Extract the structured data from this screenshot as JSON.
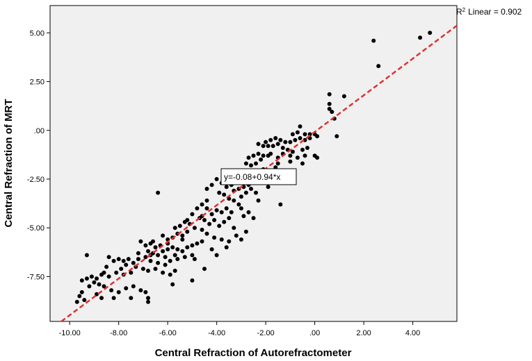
{
  "chart_data": {
    "type": "scatter",
    "xlabel": "Central Refraction of Autorefractometer",
    "ylabel": "Central Refraction of MRT",
    "xlim": [
      -10.8,
      5.8
    ],
    "ylim": [
      -9.8,
      6.4
    ],
    "x_ticks": [
      -10,
      -8,
      -6,
      -4,
      -2,
      0,
      2,
      4
    ],
    "x_tick_labels": [
      "-10.00",
      "-8.00",
      "-6.00",
      "-4.00",
      "-2.00",
      ".00",
      "2.00",
      "4.00"
    ],
    "y_ticks": [
      5,
      2.5,
      0,
      -2.5,
      -5,
      -7.5
    ],
    "y_tick_labels": [
      "5.00",
      "2.50",
      ".00",
      "-2.50",
      "-5.00",
      "-7.50"
    ],
    "r2_label": "Linear = 0.902",
    "r2_prefix": "R",
    "r2_sup": "2",
    "equation": "y=-0.08+0.94*x",
    "fit": {
      "intercept": -0.08,
      "slope": 0.94,
      "color": "#e03030"
    },
    "point_color": "#000000",
    "plot_background": "#f0f0f0",
    "points": [
      [
        4.7,
        5.0
      ],
      [
        4.3,
        4.75
      ],
      [
        2.4,
        4.6
      ],
      [
        2.6,
        3.3
      ],
      [
        0.6,
        1.85
      ],
      [
        1.2,
        1.75
      ],
      [
        0.6,
        1.35
      ],
      [
        0.6,
        1.1
      ],
      [
        0.7,
        0.95
      ],
      [
        0.9,
        -0.3
      ],
      [
        0.8,
        0.6
      ],
      [
        -0.6,
        0.2
      ],
      [
        -0.2,
        -0.2
      ],
      [
        -0.4,
        -0.2
      ],
      [
        -0.7,
        -0.1
      ],
      [
        -0.9,
        -0.2
      ],
      [
        0.0,
        -0.2
      ],
      [
        0.1,
        -0.3
      ],
      [
        -0.2,
        -0.4
      ],
      [
        -0.4,
        -0.5
      ],
      [
        -0.6,
        -0.4
      ],
      [
        -0.8,
        -0.5
      ],
      [
        -1.0,
        -0.6
      ],
      [
        -1.2,
        -0.6
      ],
      [
        -1.4,
        -0.5
      ],
      [
        -1.6,
        -0.4
      ],
      [
        -1.8,
        -0.5
      ],
      [
        -2.0,
        -0.6
      ],
      [
        -1.5,
        -0.7
      ],
      [
        -1.7,
        -0.8
      ],
      [
        -1.9,
        -0.8
      ],
      [
        -2.1,
        -0.8
      ],
      [
        -2.3,
        -0.7
      ],
      [
        -1.3,
        -0.9
      ],
      [
        -1.1,
        -1.0
      ],
      [
        -0.9,
        -1.1
      ],
      [
        -0.5,
        -1.0
      ],
      [
        -0.3,
        -0.9
      ],
      [
        0.0,
        -1.3
      ],
      [
        0.1,
        -1.4
      ],
      [
        -0.4,
        -1.3
      ],
      [
        -0.7,
        -1.4
      ],
      [
        -1.0,
        -1.3
      ],
      [
        -1.3,
        -1.2
      ],
      [
        -1.5,
        -1.4
      ],
      [
        -1.8,
        -1.2
      ],
      [
        -1.9,
        -1.3
      ],
      [
        -2.1,
        -1.3
      ],
      [
        -2.3,
        -1.2
      ],
      [
        -2.5,
        -1.3
      ],
      [
        -2.7,
        -1.4
      ],
      [
        -2.2,
        -1.5
      ],
      [
        -2.4,
        -1.7
      ],
      [
        -2.6,
        -1.8
      ],
      [
        -2.8,
        -1.7
      ],
      [
        -1.6,
        -1.9
      ],
      [
        -1.8,
        -2.1
      ],
      [
        -2.0,
        -2.3
      ],
      [
        -2.2,
        -2.4
      ],
      [
        -2.5,
        -2.6
      ],
      [
        -2.7,
        -2.8
      ],
      [
        -2.9,
        -2.9
      ],
      [
        -3.1,
        -3.0
      ],
      [
        -3.2,
        -2.7
      ],
      [
        -3.4,
        -2.8
      ],
      [
        -3.6,
        -2.9
      ],
      [
        -3.8,
        -2.7
      ],
      [
        -4.0,
        -2.5
      ],
      [
        -4.2,
        -2.8
      ],
      [
        -4.4,
        -3.0
      ],
      [
        -3.9,
        -3.2
      ],
      [
        -3.7,
        -3.3
      ],
      [
        -3.5,
        -3.5
      ],
      [
        -3.3,
        -3.6
      ],
      [
        -3.1,
        -3.8
      ],
      [
        -3.0,
        -3.4
      ],
      [
        -2.8,
        -3.2
      ],
      [
        -2.6,
        -3.0
      ],
      [
        -2.3,
        -3.6
      ],
      [
        -1.4,
        -3.8
      ],
      [
        -3.6,
        -4.0
      ],
      [
        -3.8,
        -4.2
      ],
      [
        -4.0,
        -4.1
      ],
      [
        -4.2,
        -4.3
      ],
      [
        -4.4,
        -4.0
      ],
      [
        -4.6,
        -3.8
      ],
      [
        -4.8,
        -4.0
      ],
      [
        -5.0,
        -4.3
      ],
      [
        -4.7,
        -4.5
      ],
      [
        -4.5,
        -4.6
      ],
      [
        -4.3,
        -4.8
      ],
      [
        -4.1,
        -4.6
      ],
      [
        -3.9,
        -4.9
      ],
      [
        -3.7,
        -4.7
      ],
      [
        -3.5,
        -4.5
      ],
      [
        -3.3,
        -5.0
      ],
      [
        -3.2,
        -5.4
      ],
      [
        -3.5,
        -5.7
      ],
      [
        -3.8,
        -5.6
      ],
      [
        -4.1,
        -5.5
      ],
      [
        -4.4,
        -5.3
      ],
      [
        -4.6,
        -5.1
      ],
      [
        -4.9,
        -5.0
      ],
      [
        -5.1,
        -4.8
      ],
      [
        -5.3,
        -4.7
      ],
      [
        -5.5,
        -4.9
      ],
      [
        -5.7,
        -5.0
      ],
      [
        -5.2,
        -5.2
      ],
      [
        -5.4,
        -5.4
      ],
      [
        -5.6,
        -5.3
      ],
      [
        -5.8,
        -5.5
      ],
      [
        -6.0,
        -5.6
      ],
      [
        -6.2,
        -5.4
      ],
      [
        -6.0,
        -5.8
      ],
      [
        -6.3,
        -5.9
      ],
      [
        -6.5,
        -6.0
      ],
      [
        -6.7,
        -5.8
      ],
      [
        -6.9,
        -5.9
      ],
      [
        -7.1,
        -5.7
      ],
      [
        -6.8,
        -6.2
      ],
      [
        -6.6,
        -6.3
      ],
      [
        -6.4,
        -6.4
      ],
      [
        -6.2,
        -6.2
      ],
      [
        -6.0,
        -6.1
      ],
      [
        -5.8,
        -6.0
      ],
      [
        -5.6,
        -6.1
      ],
      [
        -5.4,
        -6.2
      ],
      [
        -5.2,
        -6.0
      ],
      [
        -5.0,
        -5.9
      ],
      [
        -4.8,
        -5.8
      ],
      [
        -4.6,
        -5.7
      ],
      [
        -5.0,
        -6.4
      ],
      [
        -5.3,
        -6.5
      ],
      [
        -5.6,
        -6.6
      ],
      [
        -5.9,
        -6.7
      ],
      [
        -6.1,
        -6.9
      ],
      [
        -6.4,
        -6.8
      ],
      [
        -6.7,
        -6.7
      ],
      [
        -6.9,
        -6.5
      ],
      [
        -7.2,
        -6.6
      ],
      [
        -7.4,
        -6.8
      ],
      [
        -7.6,
        -6.6
      ],
      [
        -7.8,
        -6.7
      ],
      [
        -8.0,
        -6.6
      ],
      [
        -8.2,
        -6.7
      ],
      [
        -7.3,
        -7.0
      ],
      [
        -7.0,
        -7.1
      ],
      [
        -6.8,
        -7.2
      ],
      [
        -6.5,
        -7.1
      ],
      [
        -6.2,
        -7.3
      ],
      [
        -5.9,
        -7.4
      ],
      [
        -5.7,
        -7.2
      ],
      [
        -7.5,
        -7.3
      ],
      [
        -7.8,
        -7.4
      ],
      [
        -8.1,
        -7.3
      ],
      [
        -8.4,
        -7.5
      ],
      [
        -8.7,
        -7.4
      ],
      [
        -8.9,
        -7.6
      ],
      [
        -9.1,
        -7.5
      ],
      [
        -9.3,
        -7.6
      ],
      [
        -9.5,
        -7.7
      ],
      [
        -9.0,
        -7.8
      ],
      [
        -8.8,
        -7.9
      ],
      [
        -8.6,
        -8.0
      ],
      [
        -8.3,
        -8.2
      ],
      [
        -8.0,
        -8.3
      ],
      [
        -7.7,
        -8.1
      ],
      [
        -7.4,
        -8.0
      ],
      [
        -7.1,
        -8.2
      ],
      [
        -6.9,
        -8.3
      ],
      [
        -6.8,
        -8.6
      ],
      [
        -6.8,
        -8.8
      ],
      [
        -5.8,
        -7.9
      ],
      [
        -5.0,
        -7.7
      ],
      [
        -4.5,
        -7.1
      ],
      [
        -9.3,
        -6.4
      ],
      [
        -8.4,
        -6.5
      ],
      [
        -9.5,
        -8.3
      ],
      [
        -9.6,
        -8.5
      ],
      [
        -9.4,
        -8.7
      ],
      [
        -9.7,
        -8.8
      ],
      [
        -8.9,
        -8.4
      ],
      [
        -8.7,
        -8.6
      ],
      [
        -8.2,
        -8.6
      ],
      [
        -7.5,
        -8.6
      ],
      [
        -6.4,
        -3.2
      ],
      [
        -4.2,
        -6.1
      ],
      [
        -4.0,
        -6.4
      ],
      [
        -3.6,
        -6.0
      ],
      [
        -2.8,
        -5.2
      ],
      [
        -3.0,
        -5.6
      ],
      [
        -2.5,
        -4.5
      ],
      [
        -2.7,
        -4.2
      ],
      [
        -2.9,
        -4.4
      ],
      [
        -5.4,
        -5.6
      ],
      [
        -6.6,
        -5.7
      ],
      [
        -7.2,
        -6.3
      ],
      [
        -7.7,
        -6.9
      ],
      [
        -8.5,
        -7.0
      ],
      [
        -5.7,
        -6.4
      ],
      [
        -4.9,
        -6.6
      ],
      [
        -3.4,
        -4.2
      ],
      [
        -3.0,
        -4.0
      ],
      [
        -2.4,
        -3.2
      ],
      [
        -1.9,
        -2.9
      ],
      [
        -2.1,
        -2.0
      ],
      [
        -1.5,
        -1.7
      ],
      [
        -1.0,
        -1.6
      ],
      [
        -0.5,
        -1.7
      ],
      [
        -2.6,
        -2.3
      ],
      [
        -2.9,
        -2.4
      ],
      [
        -3.1,
        -2.2
      ],
      [
        -3.3,
        -3.1
      ],
      [
        -4.6,
        -4.4
      ],
      [
        -5.2,
        -4.6
      ],
      [
        -4.4,
        -3.6
      ],
      [
        -6.1,
        -6.5
      ],
      [
        -6.7,
        -6.4
      ],
      [
        -7.9,
        -7.1
      ],
      [
        -8.6,
        -7.3
      ],
      [
        -9.2,
        -8.0
      ]
    ]
  }
}
